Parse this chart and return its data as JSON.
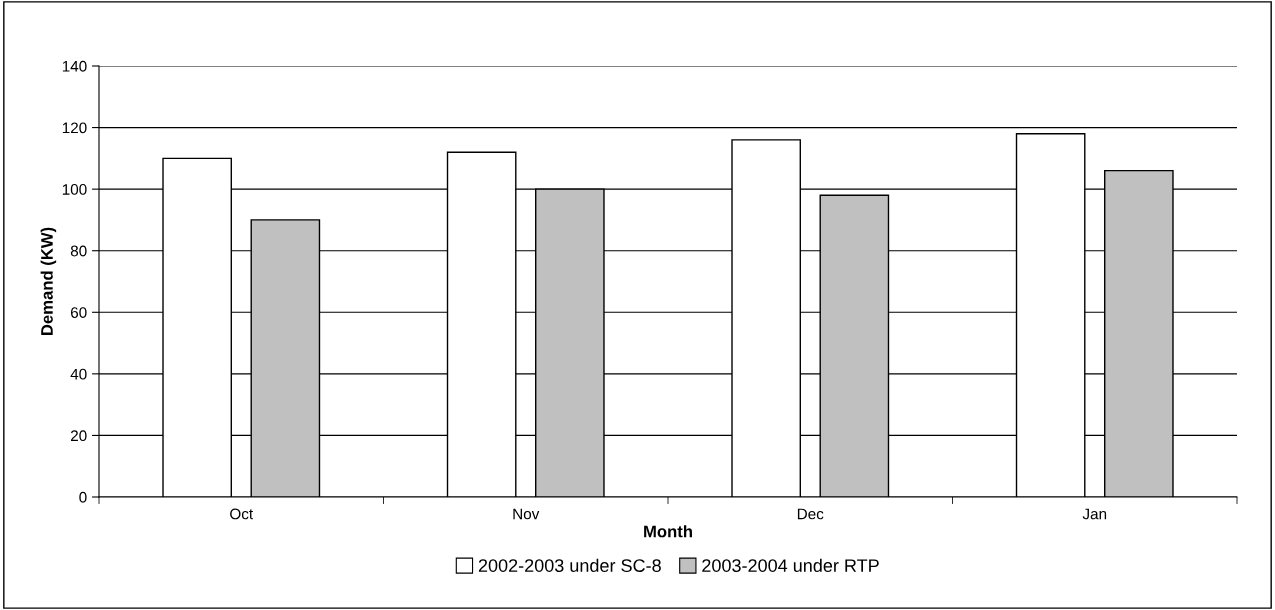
{
  "chart_data": {
    "type": "bar",
    "xlabel": "Month",
    "ylabel": "Demand (KW)",
    "categories": [
      "Oct",
      "Nov",
      "Dec",
      "Jan"
    ],
    "series": [
      {
        "name": "2002-2003 under SC-8",
        "color": "#ffffff",
        "values": [
          110,
          112,
          116,
          118
        ]
      },
      {
        "name": "2003-2004 under RTP",
        "color": "#c0c0c0",
        "values": [
          90,
          100,
          98,
          106
        ]
      }
    ],
    "ylim": [
      0,
      140
    ],
    "yticks": [
      0,
      20,
      40,
      60,
      80,
      100,
      120,
      140
    ],
    "grid": "y",
    "legend": "bottom"
  }
}
